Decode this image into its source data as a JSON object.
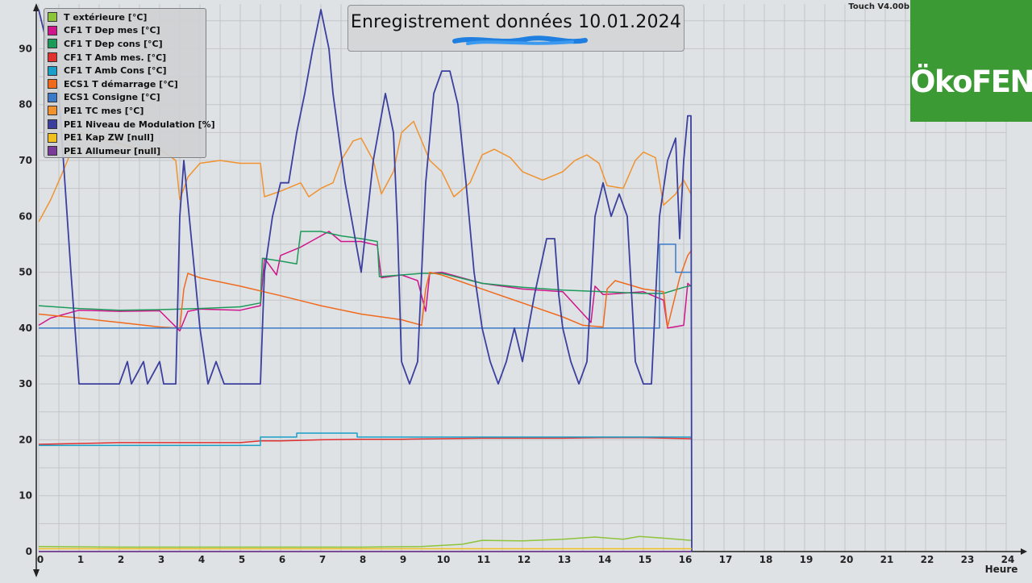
{
  "header": {
    "title": "Enregistrement données  10.01.2024",
    "version": "Touch V4.00b",
    "logo_text": "ÖkoFEN",
    "logo_color": "#3c9a35"
  },
  "chart_data": {
    "type": "line",
    "xlabel": "Heure",
    "ylabel": "",
    "xlim": [
      0,
      24
    ],
    "ylim": [
      0,
      98
    ],
    "x_ticks": [
      0,
      1,
      2,
      3,
      4,
      5,
      6,
      7,
      8,
      9,
      10,
      11,
      12,
      13,
      14,
      15,
      16,
      17,
      18,
      19,
      20,
      21,
      22,
      23,
      24
    ],
    "y_ticks": [
      0,
      10,
      20,
      30,
      40,
      50,
      60,
      70,
      80,
      90
    ],
    "grid": true,
    "legend_position": "top-left",
    "series": [
      {
        "name": "T extérieure [°C]",
        "color": "#8cc43a",
        "points": [
          [
            0,
            0.9
          ],
          [
            2,
            0.8
          ],
          [
            5,
            0.8
          ],
          [
            8,
            0.8
          ],
          [
            9.5,
            0.9
          ],
          [
            10.5,
            1.3
          ],
          [
            11,
            2.0
          ],
          [
            12,
            1.9
          ],
          [
            13,
            2.2
          ],
          [
            13.8,
            2.6
          ],
          [
            14.5,
            2.2
          ],
          [
            14.9,
            2.7
          ],
          [
            15.5,
            2.4
          ],
          [
            16.18,
            2.0
          ]
        ]
      },
      {
        "name": "CF1 T Dep mes [°C]",
        "color": "#d0158c",
        "points": [
          [
            0,
            40.5
          ],
          [
            0.3,
            41.8
          ],
          [
            1,
            43.2
          ],
          [
            2,
            43.0
          ],
          [
            3,
            43.1
          ],
          [
            3.5,
            39.5
          ],
          [
            3.7,
            43.0
          ],
          [
            4,
            43.4
          ],
          [
            5,
            43.2
          ],
          [
            5.5,
            44.0
          ],
          [
            5.6,
            52.5
          ],
          [
            5.9,
            49.5
          ],
          [
            6,
            53
          ],
          [
            6.5,
            54.5
          ],
          [
            7,
            56.5
          ],
          [
            7.2,
            57.3
          ],
          [
            7.5,
            55.5
          ],
          [
            8,
            55.5
          ],
          [
            8.4,
            54.8
          ],
          [
            8.5,
            49
          ],
          [
            9,
            49.5
          ],
          [
            9.4,
            48.5
          ],
          [
            9.6,
            43
          ],
          [
            9.7,
            49.8
          ],
          [
            10,
            50
          ],
          [
            11,
            48
          ],
          [
            12,
            47
          ],
          [
            13,
            46.5
          ],
          [
            13.7,
            41
          ],
          [
            13.8,
            47.5
          ],
          [
            14,
            46
          ],
          [
            15,
            46.5
          ],
          [
            15.5,
            45
          ],
          [
            15.6,
            40
          ],
          [
            16,
            40.5
          ],
          [
            16.1,
            48
          ],
          [
            16.18,
            47.5
          ]
        ]
      },
      {
        "name": "CF1 T Dep cons [°C]",
        "color": "#1c9a5a",
        "points": [
          [
            0,
            44
          ],
          [
            1,
            43.5
          ],
          [
            2,
            43.2
          ],
          [
            3,
            43.3
          ],
          [
            4,
            43.5
          ],
          [
            5,
            43.8
          ],
          [
            5.5,
            44.5
          ],
          [
            5.55,
            52.5
          ],
          [
            6,
            52
          ],
          [
            6.4,
            51.5
          ],
          [
            6.5,
            57.3
          ],
          [
            7,
            57.3
          ],
          [
            7.5,
            56.5
          ],
          [
            8,
            56
          ],
          [
            8.4,
            55.5
          ],
          [
            8.45,
            49.2
          ],
          [
            9,
            49.5
          ],
          [
            9.5,
            49.8
          ],
          [
            10,
            49.8
          ],
          [
            11,
            48
          ],
          [
            12,
            47.3
          ],
          [
            13,
            46.8
          ],
          [
            14,
            46.5
          ],
          [
            15,
            46.2
          ],
          [
            15.5,
            46.2
          ],
          [
            16,
            47.3
          ],
          [
            16.18,
            47.6
          ]
        ]
      },
      {
        "name": "CF1 T Amb mes. [°C]",
        "color": "#e03030",
        "points": [
          [
            0,
            19.2
          ],
          [
            2,
            19.5
          ],
          [
            5,
            19.5
          ],
          [
            5.5,
            19.8
          ],
          [
            6,
            19.8
          ],
          [
            7,
            20
          ],
          [
            8,
            20.1
          ],
          [
            9,
            20.1
          ],
          [
            10,
            20.2
          ],
          [
            11,
            20.3
          ],
          [
            12,
            20.3
          ],
          [
            13,
            20.3
          ],
          [
            14,
            20.4
          ],
          [
            15,
            20.4
          ],
          [
            16.18,
            20.2
          ]
        ]
      },
      {
        "name": "CF1 T Amb Cons [°C]",
        "color": "#1aa0c8",
        "points": [
          [
            0,
            19
          ],
          [
            5.5,
            19
          ],
          [
            5.5,
            20.5
          ],
          [
            6.4,
            20.5
          ],
          [
            6.4,
            21.2
          ],
          [
            7.9,
            21.2
          ],
          [
            7.9,
            20.5
          ],
          [
            16.18,
            20.5
          ]
        ]
      },
      {
        "name": "ECS1 T démarrage [°C]",
        "color": "#f06a1e",
        "points": [
          [
            0,
            42.5
          ],
          [
            1,
            41.8
          ],
          [
            2,
            41
          ],
          [
            3,
            40.2
          ],
          [
            3.5,
            40
          ],
          [
            3.6,
            47
          ],
          [
            3.7,
            49.8
          ],
          [
            4,
            49
          ],
          [
            5,
            47.5
          ],
          [
            6,
            45.8
          ],
          [
            7,
            44
          ],
          [
            8,
            42.5
          ],
          [
            9,
            41.5
          ],
          [
            9.5,
            40.5
          ],
          [
            9.6,
            47
          ],
          [
            9.7,
            50
          ],
          [
            10,
            49.5
          ],
          [
            11,
            47
          ],
          [
            12,
            44.5
          ],
          [
            13,
            42
          ],
          [
            13.5,
            40.5
          ],
          [
            14,
            40.2
          ],
          [
            14.1,
            47
          ],
          [
            14.3,
            48.5
          ],
          [
            15,
            47
          ],
          [
            15.5,
            46.5
          ],
          [
            15.6,
            40.2
          ],
          [
            15.9,
            49
          ],
          [
            16.1,
            53
          ],
          [
            16.2,
            54
          ]
        ]
      },
      {
        "name": "ECS1 Consigne [°C]",
        "color": "#3a7ac8",
        "points": [
          [
            0,
            40
          ],
          [
            15.4,
            40
          ],
          [
            15.4,
            55
          ],
          [
            15.8,
            55
          ],
          [
            15.8,
            50
          ],
          [
            16.18,
            50
          ]
        ]
      },
      {
        "name": "PE1 TC mes [°C]",
        "color": "#f0922e",
        "points": [
          [
            0,
            59
          ],
          [
            0.3,
            63
          ],
          [
            0.6,
            68
          ],
          [
            1,
            75
          ],
          [
            1.5,
            74
          ],
          [
            2,
            73
          ],
          [
            2.5,
            72
          ],
          [
            3,
            72
          ],
          [
            3.4,
            70
          ],
          [
            3.5,
            63
          ],
          [
            3.7,
            67
          ],
          [
            4,
            69.5
          ],
          [
            4.5,
            70
          ],
          [
            5,
            69.5
          ],
          [
            5.5,
            69.5
          ],
          [
            5.6,
            63.5
          ],
          [
            6,
            64.5
          ],
          [
            6.5,
            66
          ],
          [
            6.7,
            63.5
          ],
          [
            7,
            65
          ],
          [
            7.3,
            66
          ],
          [
            7.5,
            70
          ],
          [
            7.8,
            73.5
          ],
          [
            8,
            74
          ],
          [
            8.3,
            70
          ],
          [
            8.5,
            64
          ],
          [
            8.8,
            68
          ],
          [
            9,
            75
          ],
          [
            9.3,
            77
          ],
          [
            9.7,
            70
          ],
          [
            10,
            68
          ],
          [
            10.3,
            63.5
          ],
          [
            10.7,
            66
          ],
          [
            11,
            71
          ],
          [
            11.3,
            72
          ],
          [
            11.7,
            70.5
          ],
          [
            12,
            68
          ],
          [
            12.5,
            66.5
          ],
          [
            13,
            68
          ],
          [
            13.3,
            70
          ],
          [
            13.6,
            71
          ],
          [
            13.9,
            69.5
          ],
          [
            14.1,
            65.5
          ],
          [
            14.5,
            65
          ],
          [
            14.8,
            70
          ],
          [
            15,
            71.5
          ],
          [
            15.3,
            70.5
          ],
          [
            15.5,
            62
          ],
          [
            15.8,
            64
          ],
          [
            16,
            66.5
          ],
          [
            16.18,
            64
          ]
        ]
      },
      {
        "name": "PE1 Niveau de Modulation [%]",
        "color": "#3b3f9e",
        "points": [
          [
            0,
            97
          ],
          [
            0.5,
            82
          ],
          [
            0.8,
            50
          ],
          [
            1,
            30
          ],
          [
            2,
            30
          ],
          [
            2.2,
            34
          ],
          [
            2.3,
            30
          ],
          [
            2.6,
            34
          ],
          [
            2.7,
            30
          ],
          [
            3,
            34
          ],
          [
            3.1,
            30
          ],
          [
            3.4,
            30
          ],
          [
            3.5,
            60
          ],
          [
            3.6,
            70
          ],
          [
            3.8,
            55
          ],
          [
            4,
            40
          ],
          [
            4.2,
            30
          ],
          [
            4.4,
            34
          ],
          [
            4.6,
            30
          ],
          [
            5,
            30
          ],
          [
            5.5,
            30
          ],
          [
            5.6,
            50
          ],
          [
            5.8,
            60
          ],
          [
            6,
            66
          ],
          [
            6.2,
            66
          ],
          [
            6.4,
            75
          ],
          [
            6.6,
            82
          ],
          [
            6.8,
            90
          ],
          [
            7,
            97
          ],
          [
            7.2,
            90
          ],
          [
            7.3,
            82
          ],
          [
            7.6,
            66
          ],
          [
            7.8,
            58
          ],
          [
            8,
            50
          ],
          [
            8.3,
            70
          ],
          [
            8.6,
            82
          ],
          [
            8.8,
            75
          ],
          [
            8.9,
            58
          ],
          [
            9,
            34
          ],
          [
            9.2,
            30
          ],
          [
            9.4,
            34
          ],
          [
            9.6,
            66
          ],
          [
            9.8,
            82
          ],
          [
            10,
            86
          ],
          [
            10.2,
            86
          ],
          [
            10.4,
            80
          ],
          [
            10.6,
            66
          ],
          [
            10.8,
            50
          ],
          [
            11,
            40
          ],
          [
            11.2,
            34
          ],
          [
            11.4,
            30
          ],
          [
            11.6,
            34
          ],
          [
            11.8,
            40
          ],
          [
            12,
            34
          ],
          [
            12.3,
            46
          ],
          [
            12.6,
            56
          ],
          [
            12.8,
            56
          ],
          [
            12.9,
            46
          ],
          [
            13,
            40
          ],
          [
            13.2,
            34
          ],
          [
            13.4,
            30
          ],
          [
            13.6,
            34
          ],
          [
            13.8,
            60
          ],
          [
            14,
            66
          ],
          [
            14.2,
            60
          ],
          [
            14.4,
            64
          ],
          [
            14.6,
            60
          ],
          [
            14.8,
            34
          ],
          [
            15,
            30
          ],
          [
            15.2,
            30
          ],
          [
            15.4,
            60
          ],
          [
            15.6,
            70
          ],
          [
            15.8,
            74
          ],
          [
            15.9,
            56
          ],
          [
            16,
            70
          ],
          [
            16.1,
            78
          ],
          [
            16.18,
            78
          ],
          [
            16.2,
            0
          ]
        ]
      },
      {
        "name": "PE1 Kap ZW [null]",
        "color": "#f0c020",
        "points": [
          [
            0,
            0.5
          ],
          [
            16.2,
            0.5
          ]
        ]
      },
      {
        "name": "PE1 Allumeur [null]",
        "color": "#7a3a9a",
        "points": [
          [
            0,
            0
          ],
          [
            16.2,
            0
          ]
        ]
      }
    ]
  }
}
